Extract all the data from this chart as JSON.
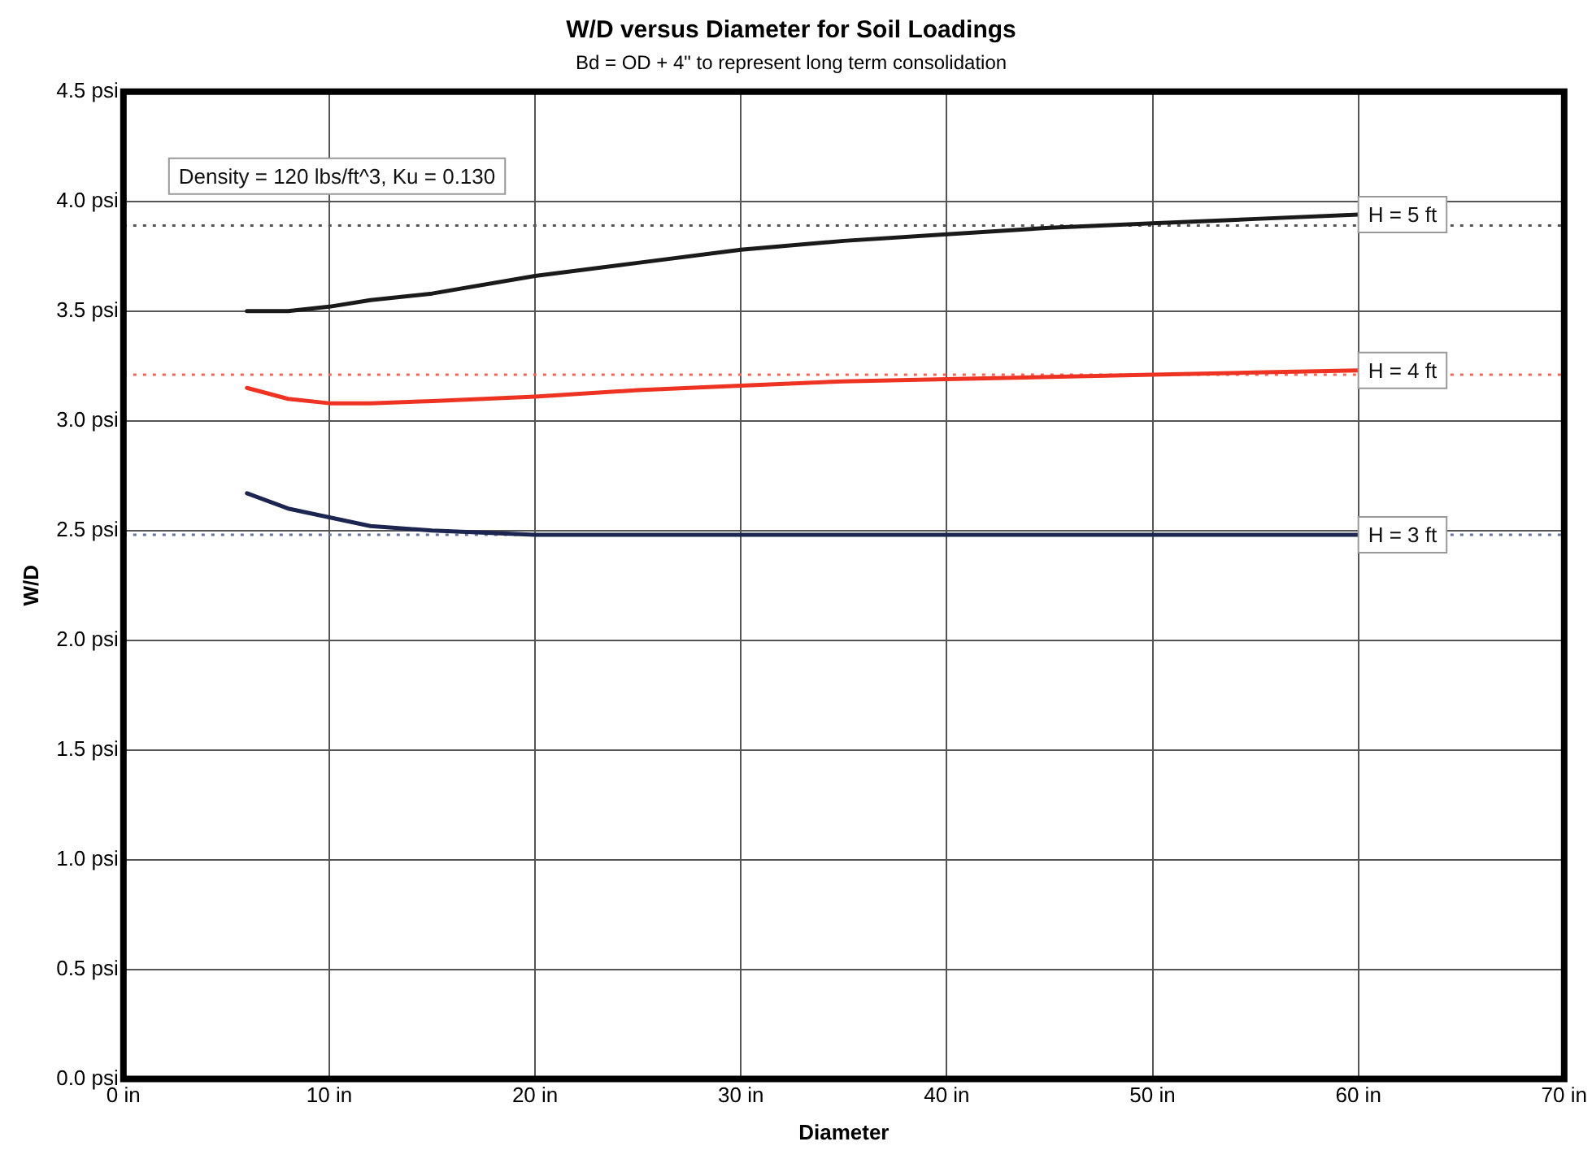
{
  "chart_data": {
    "type": "line",
    "title": "W/D versus Diameter for Soil Loadings",
    "subtitle": "Bd = OD + 4\" to represent long term consolidation",
    "xlabel": "Diameter",
    "ylabel": "W/D",
    "xlim": [
      0,
      70
    ],
    "xticks": [
      {
        "value": 0,
        "label": "0 in"
      },
      {
        "value": 10,
        "label": "10 in"
      },
      {
        "value": 20,
        "label": "20 in"
      },
      {
        "value": 30,
        "label": "30 in"
      },
      {
        "value": 40,
        "label": "40 in"
      },
      {
        "value": 50,
        "label": "50 in"
      },
      {
        "value": 60,
        "label": "60 in"
      },
      {
        "value": 70,
        "label": "70 in"
      }
    ],
    "ylim": [
      0,
      4.5
    ],
    "yticks": [
      {
        "value": 0,
        "label": "0.0 psi"
      },
      {
        "value": 0.5,
        "label": "0.5 psi"
      },
      {
        "value": 1,
        "label": "1.0 psi"
      },
      {
        "value": 1.5,
        "label": "1.5 psi"
      },
      {
        "value": 2,
        "label": "2.0 psi"
      },
      {
        "value": 2.5,
        "label": "2.5 psi"
      },
      {
        "value": 3,
        "label": "3.0 psi"
      },
      {
        "value": 3.5,
        "label": "3.5 psi"
      },
      {
        "value": 4,
        "label": "4.0 psi"
      },
      {
        "value": 4.5,
        "label": "4.5 psi"
      }
    ],
    "grid": true,
    "legend": false,
    "marker": "none",
    "line_style": "solid",
    "series": [
      {
        "name": "H = 5 ft",
        "color": "#1a1a1a",
        "x": [
          6,
          8,
          10,
          12,
          15,
          20,
          25,
          30,
          35,
          40,
          45,
          50,
          55,
          60
        ],
        "values": [
          3.5,
          3.5,
          3.52,
          3.55,
          3.58,
          3.66,
          3.72,
          3.78,
          3.82,
          3.85,
          3.88,
          3.9,
          3.92,
          3.94
        ]
      },
      {
        "name": "H = 4 ft",
        "color": "#ee3322",
        "x": [
          6,
          8,
          10,
          12,
          15,
          20,
          25,
          30,
          35,
          40,
          45,
          50,
          55,
          60
        ],
        "values": [
          3.15,
          3.1,
          3.08,
          3.08,
          3.09,
          3.11,
          3.14,
          3.16,
          3.18,
          3.19,
          3.2,
          3.21,
          3.22,
          3.23
        ]
      },
      {
        "name": "H = 3 ft",
        "color": "#1c2450",
        "x": [
          6,
          8,
          10,
          12,
          15,
          20,
          25,
          30,
          35,
          40,
          45,
          50,
          55,
          60
        ],
        "values": [
          2.67,
          2.6,
          2.56,
          2.52,
          2.5,
          2.48,
          2.48,
          2.48,
          2.48,
          2.48,
          2.48,
          2.48,
          2.48,
          2.48
        ]
      }
    ],
    "ref_lines": [
      {
        "axis": "y",
        "value": 3.89,
        "color": "#555555",
        "line_style": "dotted"
      },
      {
        "axis": "y",
        "value": 3.21,
        "color": "#ee6655",
        "line_style": "dotted"
      },
      {
        "axis": "y",
        "value": 2.48,
        "color": "#667799",
        "line_style": "dotted"
      }
    ],
    "annotations": [
      "Density = 120 lbs/ft^3, Ku = 0.130"
    ]
  }
}
